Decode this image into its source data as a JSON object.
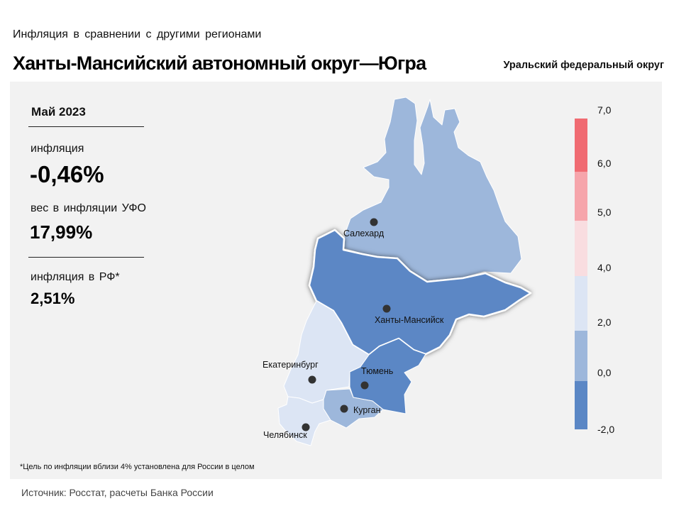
{
  "header": {
    "subtitle": "Инфляция в сравнении с другими регионами",
    "title": "Ханты-Мансийский автономный округ—Югра",
    "district": "Уральский федеральный округ"
  },
  "stats": {
    "period": "Май 2023",
    "inflation_label": "инфляция",
    "inflation_value": "-0,46%",
    "weight_label": "вес в инфляции УФО",
    "weight_value": "17,99%",
    "rf_label": "инфляция в РФ*",
    "rf_value": "2,51%"
  },
  "footnote": "*Цель по инфляции вблизи 4% установлена для России в целом",
  "source": "Источник: Росстат, расчеты Банка России",
  "colors": {
    "panel_bg": "#f2f2f2",
    "bin_neg2_0": "#5b87c5",
    "bin_0_2": "#9db7db",
    "bin_2_4": "#dce5f4",
    "bin_4_5": "#f9dde0",
    "bin_5_6": "#f6a5ab",
    "bin_6_7": "#f06b72"
  },
  "legend": {
    "ticks": [
      "-2,0",
      "0,0",
      "2,0",
      "4,0",
      "5,0",
      "6,0",
      "7,0"
    ],
    "bins": [
      {
        "from": -2,
        "to": 0,
        "color": "#5b87c5"
      },
      {
        "from": 0,
        "to": 2,
        "color": "#9db7db"
      },
      {
        "from": 2,
        "to": 4,
        "color": "#dce5f4"
      },
      {
        "from": 4,
        "to": 5,
        "color": "#f9dde0"
      },
      {
        "from": 5,
        "to": 6,
        "color": "#f6a5ab"
      },
      {
        "from": 6,
        "to": 7,
        "color": "#f06b72"
      }
    ]
  },
  "map": {
    "regions": [
      {
        "id": "yamalo-nenets",
        "bin": "bin_0_2"
      },
      {
        "id": "khanty-mansi",
        "bin": "bin_neg2_0",
        "highlighted": true
      },
      {
        "id": "sverdlovsk",
        "bin": "bin_2_4"
      },
      {
        "id": "tyumen",
        "bin": "bin_neg2_0"
      },
      {
        "id": "kurgan",
        "bin": "bin_0_2"
      },
      {
        "id": "chelyabinsk",
        "bin": "bin_2_4"
      }
    ],
    "cities": [
      "Салехард",
      "Ханты-Мансийск",
      "Екатеринбург",
      "Тюмень",
      "Курган",
      "Челябинск"
    ]
  }
}
